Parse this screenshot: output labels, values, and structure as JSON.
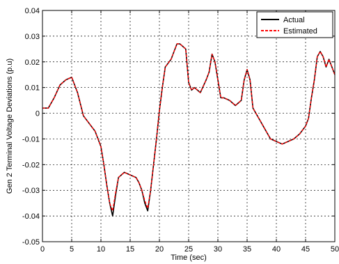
{
  "chart_data": {
    "type": "line",
    "xlabel": "Time (sec)",
    "ylabel": "Gen 2 Terminal Voltage Deviations (p.u)",
    "xlim": [
      0,
      50
    ],
    "ylim": [
      -0.05,
      0.04
    ],
    "x_ticks": [
      0,
      5,
      10,
      15,
      20,
      25,
      30,
      35,
      40,
      45,
      50
    ],
    "x_tick_labels": [
      "0",
      "5",
      "10",
      "15",
      "20",
      "25",
      "30",
      "35",
      "40",
      "45",
      "50"
    ],
    "y_ticks": [
      -0.05,
      -0.04,
      -0.03,
      -0.02,
      -0.01,
      0,
      0.01,
      0.02,
      0.03,
      0.04
    ],
    "y_tick_labels": [
      "-0.05",
      "-0.04",
      "-0.03",
      "-0.02",
      "-0.01",
      "0",
      "0.01",
      "0.02",
      "0.03",
      "0.04"
    ],
    "grid": true,
    "legend_position": "top-right",
    "x": [
      0,
      1,
      2,
      3,
      4,
      5,
      6,
      7,
      8,
      9,
      10,
      10.5,
      11,
      11.5,
      12,
      12.5,
      13,
      14,
      15,
      16,
      16.5,
      17,
      17.5,
      18,
      18.5,
      19,
      19.5,
      20,
      20.5,
      21,
      22,
      22.5,
      23,
      23.5,
      24,
      24.5,
      25,
      25.5,
      26,
      27,
      28,
      28.5,
      29,
      29.5,
      30,
      30.5,
      31,
      32,
      33,
      34,
      34.5,
      35,
      35.5,
      36,
      37,
      38,
      39,
      40,
      41,
      42,
      43,
      44,
      45,
      45.5,
      46,
      46.5,
      47,
      47.5,
      48,
      48.5,
      49,
      50
    ],
    "series": [
      {
        "name": "Actual",
        "color": "#000000",
        "dash": "solid",
        "values": [
          0.002,
          0.002,
          0.006,
          0.011,
          0.013,
          0.014,
          0.008,
          -0.001,
          -0.004,
          -0.007,
          -0.013,
          -0.02,
          -0.028,
          -0.035,
          -0.04,
          -0.032,
          -0.025,
          -0.023,
          -0.024,
          -0.025,
          -0.027,
          -0.03,
          -0.035,
          -0.038,
          -0.03,
          -0.02,
          -0.01,
          0.001,
          0.01,
          0.018,
          0.021,
          0.024,
          0.027,
          0.027,
          0.026,
          0.025,
          0.012,
          0.009,
          0.01,
          0.008,
          0.013,
          0.016,
          0.023,
          0.02,
          0.013,
          0.006,
          0.006,
          0.005,
          0.003,
          0.005,
          0.013,
          0.017,
          0.013,
          0.002,
          -0.002,
          -0.006,
          -0.01,
          -0.011,
          -0.012,
          -0.011,
          -0.01,
          -0.008,
          -0.005,
          -0.002,
          0.006,
          0.013,
          0.022,
          0.024,
          0.022,
          0.018,
          0.021,
          0.015
        ]
      },
      {
        "name": "Estimated",
        "color": "#ff0000",
        "dash": "dashed",
        "values": [
          0.002,
          0.002,
          0.006,
          0.011,
          0.013,
          0.014,
          0.008,
          -0.001,
          -0.004,
          -0.007,
          -0.013,
          -0.02,
          -0.028,
          -0.035,
          -0.038,
          -0.031,
          -0.025,
          -0.023,
          -0.024,
          -0.025,
          -0.027,
          -0.03,
          -0.034,
          -0.037,
          -0.03,
          -0.02,
          -0.01,
          0.001,
          0.01,
          0.018,
          0.021,
          0.024,
          0.027,
          0.027,
          0.026,
          0.025,
          0.012,
          0.009,
          0.01,
          0.008,
          0.013,
          0.016,
          0.023,
          0.02,
          0.013,
          0.006,
          0.006,
          0.005,
          0.003,
          0.005,
          0.013,
          0.017,
          0.013,
          0.002,
          -0.002,
          -0.006,
          -0.01,
          -0.011,
          -0.012,
          -0.011,
          -0.01,
          -0.008,
          -0.005,
          -0.002,
          0.006,
          0.013,
          0.022,
          0.024,
          0.022,
          0.018,
          0.021,
          0.015
        ]
      }
    ]
  }
}
